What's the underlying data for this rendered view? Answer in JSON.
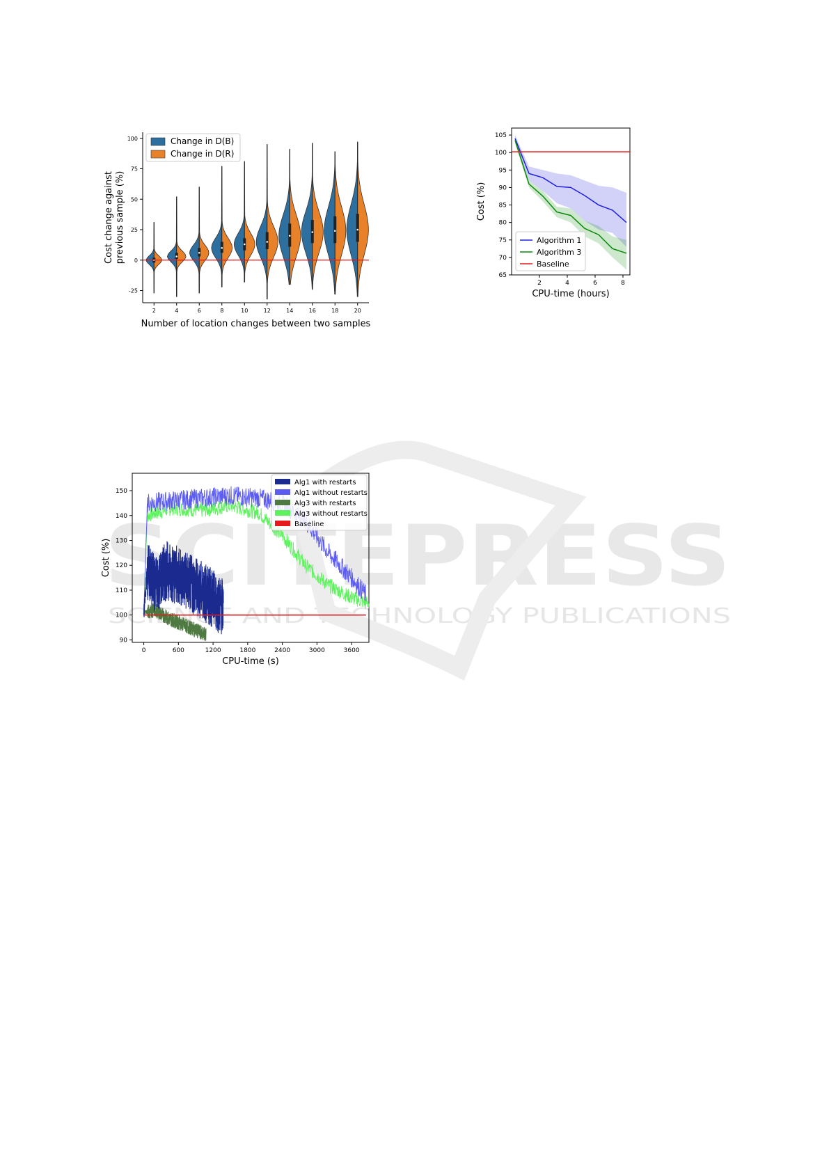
{
  "watermark": {
    "line1": "SCITEPRESS",
    "line2": "SCIENCE AND TECHNOLOGY PUBLICATIONS"
  },
  "chart_data": [
    {
      "type": "violin",
      "title": "",
      "xlabel": "Number of location changes between two samples",
      "ylabel_line1": "Cost change against",
      "ylabel_line2": "previous sample (%)",
      "categories": [
        "2",
        "4",
        "6",
        "8",
        "10",
        "12",
        "14",
        "16",
        "18",
        "20"
      ],
      "ylim": [
        -35,
        105
      ],
      "yticks": [
        -25,
        0,
        25,
        50,
        75,
        100
      ],
      "baseline": 0,
      "baseline_color": "#e41a1c",
      "legend_position": "top-left",
      "series": [
        {
          "name": "Change in D(B)",
          "color": "#2d6f9e",
          "min": [
            -27,
            -30,
            -27,
            -22,
            -18,
            -32,
            -20,
            -24,
            -28,
            -30
          ],
          "max": [
            31,
            52,
            60,
            77,
            81,
            95,
            91,
            96,
            89,
            97
          ],
          "median": [
            0,
            3,
            6,
            10,
            13,
            15,
            20,
            23,
            24,
            25
          ],
          "q1": [
            -2,
            1,
            3,
            6,
            8,
            9,
            11,
            14,
            14,
            15
          ],
          "q3": [
            2,
            6,
            10,
            15,
            18,
            23,
            30,
            33,
            36,
            38
          ]
        },
        {
          "name": "Change in D(R)",
          "color": "#e8822a",
          "min": [
            -27,
            -30,
            -27,
            -22,
            -18,
            -32,
            -20,
            -24,
            -28,
            -30
          ],
          "max": [
            31,
            52,
            60,
            77,
            81,
            95,
            91,
            96,
            89,
            97
          ],
          "median": [
            0,
            3,
            6,
            10,
            13,
            15,
            20,
            23,
            24,
            25
          ],
          "q1": [
            -2,
            1,
            3,
            6,
            8,
            9,
            11,
            14,
            14,
            15
          ],
          "q3": [
            2,
            6,
            10,
            15,
            18,
            23,
            30,
            33,
            36,
            38
          ]
        }
      ]
    },
    {
      "type": "line",
      "title": "",
      "xlabel": "CPU-time (hours)",
      "ylabel": "Cost (%)",
      "xlim": [
        0,
        8.5
      ],
      "ylim": [
        65,
        107
      ],
      "xticks": [
        2,
        4,
        6,
        8
      ],
      "yticks": [
        65,
        70,
        75,
        80,
        85,
        90,
        95,
        100,
        105
      ],
      "legend_position": "bottom-left",
      "series": [
        {
          "name": "Algorithm 1",
          "color": "#1f1fe0",
          "x": [
            0.25,
            1.25,
            2.25,
            3.25,
            4.25,
            5.25,
            6.25,
            7.25,
            8.25
          ],
          "values": [
            104,
            94,
            92.8,
            90.3,
            90,
            87.7,
            85,
            83.5,
            80
          ],
          "band_low": [
            103,
            92,
            89,
            85.5,
            84,
            80.5,
            78,
            77,
            73
          ],
          "band_high": [
            105,
            96,
            95,
            94,
            93.5,
            92,
            90.5,
            90,
            88.5
          ]
        },
        {
          "name": "Algorithm 3",
          "color": "#0a8a0a",
          "x": [
            0.25,
            1.25,
            2.25,
            3.25,
            4.25,
            5.25,
            6.25,
            7.25,
            8.25
          ],
          "values": [
            103.5,
            91,
            87.5,
            83,
            82,
            78.3,
            76.5,
            72.5,
            71.2
          ],
          "band_low": [
            102.5,
            90,
            86,
            81.5,
            80,
            76,
            74,
            70,
            66.5
          ],
          "band_high": [
            104.5,
            92,
            89,
            84.5,
            84,
            80.5,
            79,
            76,
            75
          ]
        },
        {
          "name": "Baseline",
          "color": "#e41a1c",
          "x": [
            0,
            8.5
          ],
          "values": [
            100.2,
            100.2
          ]
        }
      ]
    },
    {
      "type": "line",
      "title": "",
      "xlabel": "CPU-time (s)",
      "ylabel": "Cost (%)",
      "xlim": [
        -200,
        3900
      ],
      "ylim": [
        89,
        157
      ],
      "xticks": [
        0,
        600,
        1200,
        1800,
        2400,
        3000,
        3600
      ],
      "yticks": [
        90,
        100,
        110,
        120,
        130,
        140,
        150
      ],
      "legend_position": "top-right",
      "series": [
        {
          "name": "Alg1 with restarts",
          "color": "#1b2a8f",
          "x_end": 1380,
          "trend": [
            [
              0,
              100
            ],
            [
              60,
              118
            ],
            [
              200,
              112
            ],
            [
              400,
              118
            ],
            [
              650,
              115
            ],
            [
              1000,
              110
            ],
            [
              1380,
              103
            ]
          ],
          "noise": 12
        },
        {
          "name": "Alg1 without restarts",
          "color": "#5c5cf2",
          "x_end": 3850,
          "trend": [
            [
              0,
              100
            ],
            [
              60,
              145
            ],
            [
              500,
              146
            ],
            [
              1000,
              147
            ],
            [
              1500,
              148
            ],
            [
              2000,
              147
            ],
            [
              2400,
              145
            ],
            [
              2800,
              138
            ],
            [
              3200,
              125
            ],
            [
              3600,
              115
            ],
            [
              3850,
              108
            ]
          ],
          "noise": 4
        },
        {
          "name": "Alg3 with restarts",
          "color": "#4e7a42",
          "x_end": 1080,
          "trend": [
            [
              0,
              101
            ],
            [
              200,
              102
            ],
            [
              400,
              99
            ],
            [
              700,
              96
            ],
            [
              1080,
              92
            ]
          ],
          "noise": 3
        },
        {
          "name": "Alg3 without restarts",
          "color": "#5cf25c",
          "x_end": 4100,
          "trend": [
            [
              0,
              100
            ],
            [
              60,
              140
            ],
            [
              500,
              143
            ],
            [
              1000,
              142
            ],
            [
              1500,
              144
            ],
            [
              2000,
              141
            ],
            [
              2400,
              132
            ],
            [
              2800,
              120
            ],
            [
              3200,
              112
            ],
            [
              3600,
              107
            ],
            [
              4100,
              103
            ]
          ],
          "noise": 3
        },
        {
          "name": "Baseline",
          "color": "#e41a1c",
          "x": [
            0,
            3850
          ],
          "values": [
            100,
            100
          ]
        }
      ]
    }
  ]
}
